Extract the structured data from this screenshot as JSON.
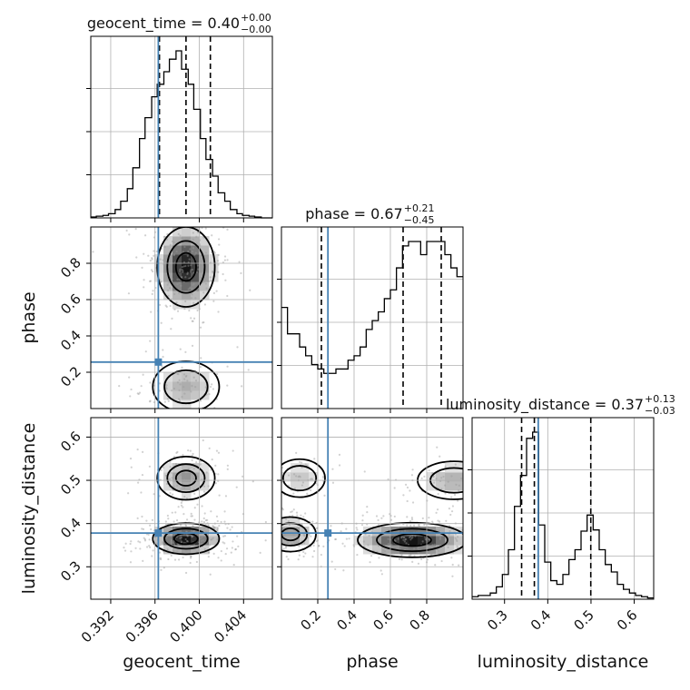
{
  "chart_data": {
    "type": "corner",
    "parameters": [
      "geocent_time",
      "phase",
      "luminosity_distance"
    ],
    "truths": {
      "geocent_time": 0.3963,
      "phase": 0.256,
      "luminosity_distance": 0.378
    },
    "ranges": {
      "geocent_time": [
        0.3902,
        0.4066
      ],
      "phase": [
        0.0,
        1.0
      ],
      "luminosity_distance": [
        0.225,
        0.645
      ]
    },
    "ticks": {
      "geocent_time": [
        0.392,
        0.396,
        0.4,
        0.404
      ],
      "phase": [
        0.2,
        0.4,
        0.6,
        0.8
      ],
      "luminosity_distance": [
        0.3,
        0.4,
        0.5,
        0.6
      ]
    },
    "tick_labels": {
      "geocent_time": [
        "0.392",
        "0.396",
        "0.400",
        "0.404"
      ],
      "phase": [
        "0.2",
        "0.4",
        "0.6",
        "0.8"
      ],
      "luminosity_distance": [
        "0.3",
        "0.4",
        "0.5",
        "0.6"
      ]
    },
    "axis_labels": {
      "geocent_time": "geocent_time",
      "phase": "phase",
      "luminosity_distance": "luminosity_distance"
    },
    "titles": {
      "geocent_time": {
        "text": "geocent_time = 0.40",
        "plus": "+0.00",
        "minus": "−0.00"
      },
      "phase": {
        "text": "phase = 0.67",
        "plus": "+0.21",
        "minus": "−0.45"
      },
      "luminosity_distance": {
        "text": "luminosity_distance = 0.37",
        "plus": "+0.13",
        "minus": "−0.03"
      }
    },
    "quantiles": {
      "geocent_time": [
        0.3964,
        0.3988,
        0.401
      ],
      "phase": [
        0.22,
        0.67,
        0.88
      ],
      "luminosity_distance": [
        0.3395,
        0.369,
        0.4995
      ]
    },
    "histograms": {
      "geocent_time": {
        "edges": [
          0.3902,
          0.3907,
          0.3913,
          0.3918,
          0.3924,
          0.3929,
          0.3935,
          0.394,
          0.3946,
          0.3951,
          0.3957,
          0.3962,
          0.3968,
          0.3973,
          0.3979,
          0.3984,
          0.399,
          0.3995,
          0.4001,
          0.4006,
          0.4012,
          0.4017,
          0.4023,
          0.4028,
          0.4034,
          0.4039,
          0.4045,
          0.405,
          0.4056,
          0.4061,
          0.4066
        ],
        "counts": [
          1,
          2,
          3,
          5,
          10,
          20,
          35,
          60,
          95,
          120,
          145,
          160,
          175,
          190,
          200,
          178,
          160,
          130,
          95,
          70,
          50,
          30,
          20,
          10,
          5,
          3,
          2,
          1,
          0,
          0
        ]
      },
      "phase": {
        "edges": [
          0.0,
          0.0333,
          0.0667,
          0.1,
          0.1333,
          0.1667,
          0.2,
          0.2333,
          0.2667,
          0.3,
          0.3333,
          0.3667,
          0.4,
          0.4333,
          0.4667,
          0.5,
          0.5333,
          0.5667,
          0.6,
          0.6333,
          0.6667,
          0.7,
          0.7333,
          0.7667,
          0.8,
          0.8333,
          0.8667,
          0.9,
          0.9333,
          0.9667,
          1.0
        ],
        "counts": [
          115,
          85,
          85,
          70,
          60,
          50,
          45,
          40,
          40,
          45,
          45,
          55,
          60,
          70,
          90,
          100,
          110,
          125,
          135,
          160,
          185,
          190,
          190,
          175,
          190,
          190,
          190,
          175,
          160,
          150
        ]
      },
      "luminosity_distance": {
        "edges": [
          0.225,
          0.239,
          0.253,
          0.267,
          0.281,
          0.295,
          0.309,
          0.323,
          0.337,
          0.351,
          0.365,
          0.379,
          0.393,
          0.407,
          0.421,
          0.435,
          0.449,
          0.463,
          0.477,
          0.491,
          0.505,
          0.519,
          0.533,
          0.547,
          0.561,
          0.575,
          0.589,
          0.603,
          0.617,
          0.631,
          0.645
        ],
        "counts": [
          2,
          3,
          3,
          5,
          10,
          20,
          40,
          75,
          100,
          130,
          135,
          60,
          30,
          15,
          12,
          20,
          32,
          40,
          55,
          68,
          56,
          40,
          28,
          22,
          12,
          8,
          5,
          3,
          2,
          1
        ]
      }
    },
    "density_2d": [
      {
        "x": "geocent_time",
        "y": "phase",
        "modes": [
          {
            "center": [
              0.3988,
              0.78
            ],
            "sigma": [
              0.0013,
              0.11
            ],
            "weight": 1.0
          },
          {
            "center": [
              0.3988,
              0.12
            ],
            "sigma": [
              0.0015,
              0.07
            ],
            "weight": 0.35
          }
        ]
      },
      {
        "x": "geocent_time",
        "y": "luminosity_distance",
        "modes": [
          {
            "center": [
              0.3988,
              0.365
            ],
            "sigma": [
              0.0015,
              0.018
            ],
            "weight": 1.0
          },
          {
            "center": [
              0.3988,
              0.505
            ],
            "sigma": [
              0.0013,
              0.025
            ],
            "weight": 0.45
          }
        ]
      },
      {
        "x": "phase",
        "y": "luminosity_distance",
        "modes": [
          {
            "center": [
              0.72,
              0.362
            ],
            "sigma": [
              0.15,
              0.02
            ],
            "weight": 1.0
          },
          {
            "center": [
              0.05,
              0.375
            ],
            "sigma": [
              0.07,
              0.02
            ],
            "weight": 0.45
          },
          {
            "center": [
              0.95,
              0.5
            ],
            "sigma": [
              0.1,
              0.022
            ],
            "weight": 0.35
          },
          {
            "center": [
              0.1,
              0.505
            ],
            "sigma": [
              0.07,
              0.022
            ],
            "weight": 0.25
          }
        ]
      }
    ]
  }
}
